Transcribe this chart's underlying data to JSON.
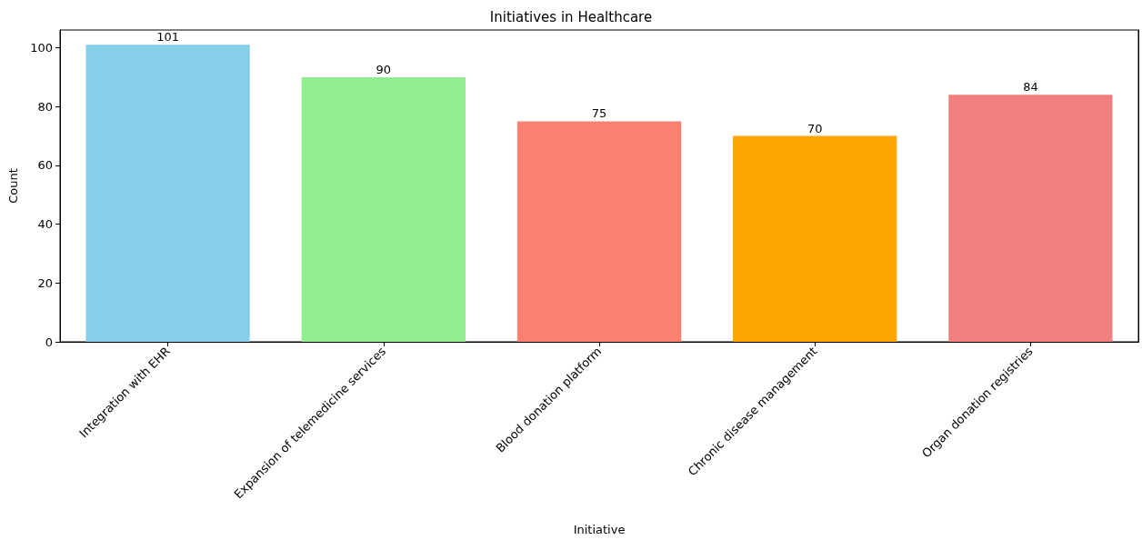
{
  "chart_data": {
    "type": "bar",
    "title": "Initiatives in Healthcare",
    "xlabel": "Initiative",
    "ylabel": "Count",
    "categories": [
      "Integration with EHR",
      "Expansion of telemedicine services",
      "Blood donation platform",
      "Chronic disease management",
      "Organ donation registries"
    ],
    "values": [
      101,
      90,
      75,
      70,
      84
    ],
    "colors": [
      "#87ceeb",
      "#90ee90",
      "#fa8072",
      "#ffa500",
      "#f08080"
    ],
    "ylim": [
      0,
      106.05
    ],
    "yticks": [
      0,
      20,
      40,
      60,
      80,
      100
    ],
    "grid": false,
    "data_labels": true
  }
}
